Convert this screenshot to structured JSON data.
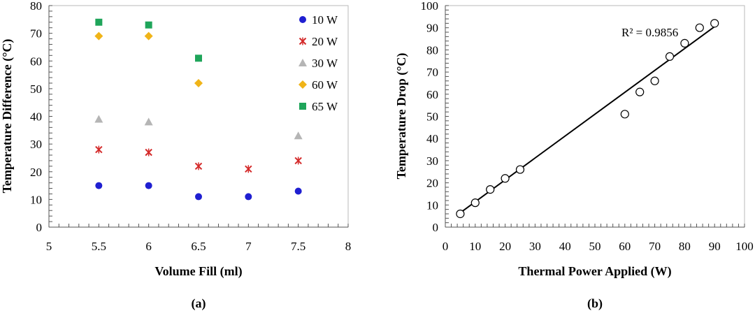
{
  "chart_data": [
    {
      "type": "scatter",
      "caption": "(a)",
      "xlabel": "Volume Fill (ml)",
      "ylabel": "Temperature Difference (°C)",
      "xlim": [
        5,
        8
      ],
      "ylim": [
        0,
        80
      ],
      "x_ticks": [
        "5",
        "5.5",
        "6",
        "6.5",
        "7",
        "7.5",
        "8"
      ],
      "y_ticks": [
        "0",
        "10",
        "20",
        "30",
        "40",
        "50",
        "60",
        "70",
        "80"
      ],
      "grid": false,
      "legend_position": "top-right",
      "series": [
        {
          "name": "10 W",
          "marker": "circle",
          "color": "#1f1fd1",
          "points": [
            [
              5.5,
              15
            ],
            [
              6,
              15
            ],
            [
              6.5,
              11
            ],
            [
              7,
              11
            ],
            [
              7.5,
              13
            ]
          ]
        },
        {
          "name": "20 W",
          "marker": "star",
          "color": "#d42a2a",
          "points": [
            [
              5.5,
              28
            ],
            [
              6,
              27
            ],
            [
              6.5,
              22
            ],
            [
              7,
              21
            ],
            [
              7.5,
              24
            ]
          ]
        },
        {
          "name": "30 W",
          "marker": "triangle",
          "color": "#b5b5b5",
          "points": [
            [
              5.5,
              39
            ],
            [
              6,
              38
            ],
            [
              7.5,
              33
            ]
          ]
        },
        {
          "name": "60 W",
          "marker": "diamond",
          "color": "#f0b418",
          "points": [
            [
              5.5,
              69
            ],
            [
              6,
              69
            ],
            [
              6.5,
              52
            ]
          ]
        },
        {
          "name": "65 W",
          "marker": "square",
          "color": "#1fa55a",
          "points": [
            [
              5.5,
              74
            ],
            [
              6,
              73
            ],
            [
              6.5,
              61
            ]
          ]
        }
      ]
    },
    {
      "type": "scatter",
      "caption": "(b)",
      "xlabel": "Thermal Power Applied (W)",
      "ylabel": "Temperature Drop (°C)",
      "xlim": [
        0,
        100
      ],
      "ylim": [
        0,
        100
      ],
      "x_ticks": [
        "0",
        "10",
        "20",
        "30",
        "40",
        "50",
        "60",
        "70",
        "80",
        "90",
        "100"
      ],
      "y_ticks": [
        "0",
        "10",
        "20",
        "30",
        "40",
        "50",
        "60",
        "70",
        "80",
        "90",
        "100"
      ],
      "grid": false,
      "annotation": "R² = 0.9856",
      "series": [
        {
          "marker": "open-circle",
          "color": "#000000",
          "points": [
            [
              5,
              6
            ],
            [
              10,
              11
            ],
            [
              15,
              17
            ],
            [
              20,
              22
            ],
            [
              25,
              26
            ],
            [
              60,
              51
            ],
            [
              65,
              61
            ],
            [
              70,
              66
            ],
            [
              75,
              77
            ],
            [
              80,
              83
            ],
            [
              85,
              90
            ],
            [
              90,
              92
            ]
          ]
        }
      ],
      "trendline": {
        "type": "linear",
        "from": [
          5,
          6.5
        ],
        "to": [
          90,
          90.5
        ]
      }
    }
  ]
}
